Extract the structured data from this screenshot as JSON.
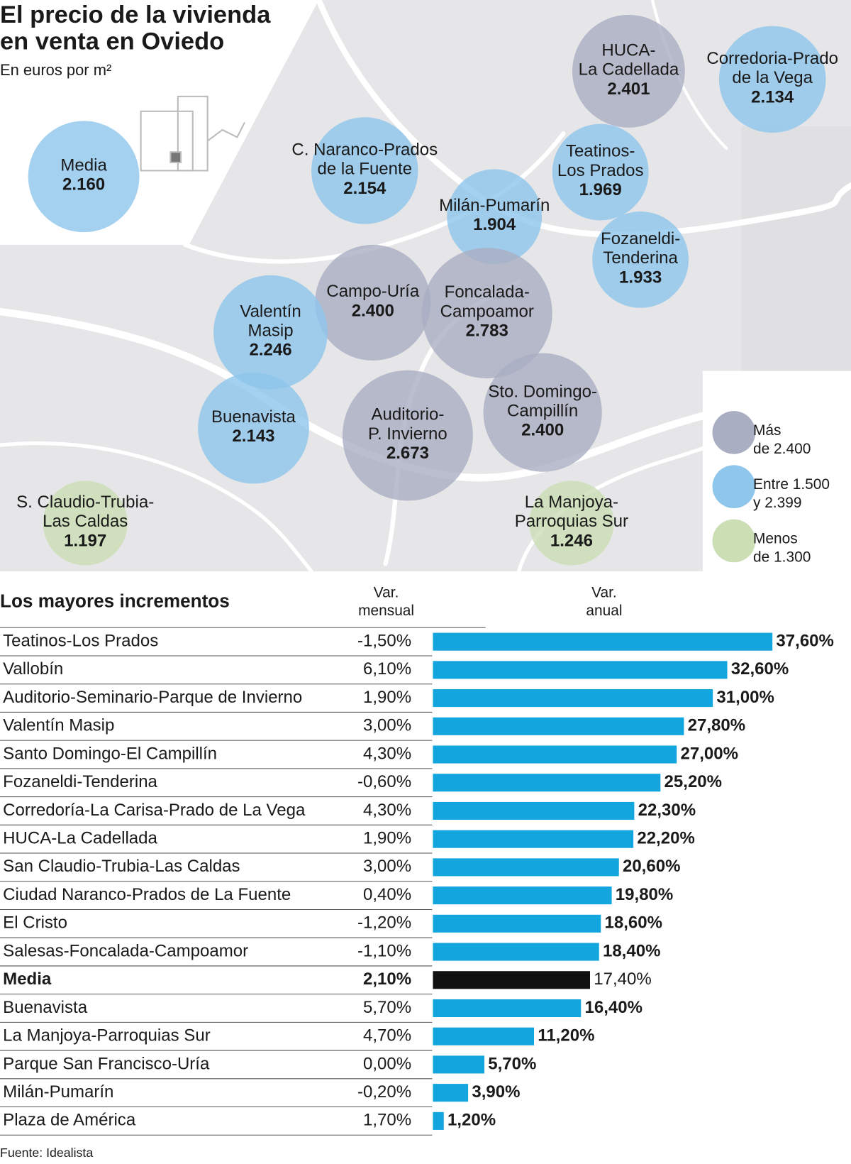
{
  "header": {
    "title": [
      "El precio de la vivienda",
      "en venta en Oviedo"
    ],
    "subtitle": "En euros por m²"
  },
  "map": {
    "legend": [
      {
        "label_lines": [
          "Más",
          "de 2.400"
        ],
        "color": "#a9aec2"
      },
      {
        "label_lines": [
          "Entre 1.500",
          "y 2.399"
        ],
        "color": "#8ec6ec"
      },
      {
        "label_lines": [
          "Menos",
          "de 1.300"
        ],
        "color": "#cbdeb4"
      }
    ],
    "bubbles": [
      {
        "label_lines": [
          "Media"
        ],
        "value": "2.160",
        "group": 1
      },
      {
        "label_lines": [
          "HUCA-",
          "La Cadellada"
        ],
        "value": "2.401",
        "group": 0
      },
      {
        "label_lines": [
          "Corredoria-Prado",
          "de la Vega"
        ],
        "value": "2.134",
        "group": 1
      },
      {
        "label_lines": [
          "C. Naranco-Prados",
          "de la Fuente"
        ],
        "value": "2.154",
        "group": 1
      },
      {
        "label_lines": [
          "Teatinos-",
          "Los Prados"
        ],
        "value": "1.969",
        "group": 1
      },
      {
        "label_lines": [
          "Milán-Pumarín"
        ],
        "value": "1.904",
        "group": 1
      },
      {
        "label_lines": [
          "Fozaneldi-",
          "Tenderina"
        ],
        "value": "1.933",
        "group": 1
      },
      {
        "label_lines": [
          "Campo-Uría"
        ],
        "value": "2.400",
        "group": 0
      },
      {
        "label_lines": [
          "Foncalada-",
          "Campoamor"
        ],
        "value": "2.783",
        "group": 0
      },
      {
        "label_lines": [
          "Valentín",
          "Masip"
        ],
        "value": "2.246",
        "group": 1
      },
      {
        "label_lines": [
          "Buenavista"
        ],
        "value": "2.143",
        "group": 1
      },
      {
        "label_lines": [
          "Auditorio-",
          "P. Invierno"
        ],
        "value": "2.673",
        "group": 0
      },
      {
        "label_lines": [
          "Sto. Domingo-",
          "Campillín"
        ],
        "value": "2.400",
        "group": 0
      },
      {
        "label_lines": [
          "S. Claudio-Trubia-",
          "Las Caldas"
        ],
        "value": "1.197",
        "group": 2
      },
      {
        "label_lines": [
          "La Manjoya-",
          "Parroquias Sur"
        ],
        "value": "1.246",
        "group": 2
      }
    ]
  },
  "chart_data": {
    "type": "bar",
    "title": "Los mayores incrementos",
    "column_headers": [
      [
        "Var.",
        "mensual"
      ],
      [
        "Var.",
        "anual"
      ]
    ],
    "categories": [
      "Teatinos-Los Prados",
      "Vallobín",
      "Auditorio-Seminario-Parque de Invierno",
      "Valentín Masip",
      "Santo Domingo-El Campillín",
      "Fozaneldi-Tenderina",
      "Corredoría-La Carisa-Prado de La Vega",
      "HUCA-La Cadellada",
      "San Claudio-Trubia-Las Caldas",
      "Ciudad Naranco-Prados de La Fuente",
      "El Cristo",
      "Salesas-Foncalada-Campoamor",
      "Media",
      "Buenavista",
      "La Manjoya-Parroquias Sur",
      "Parque San Francisco-Uría",
      "Milán-Pumarín",
      "Plaza de América"
    ],
    "monthly": [
      "-1,50%",
      "6,10%",
      "1,90%",
      "3,00%",
      "4,30%",
      "-0,60%",
      "4,30%",
      "1,90%",
      "3,00%",
      "0,40%",
      "-1,20%",
      "-1,10%",
      "2,10%",
      "5,70%",
      "4,70%",
      "0,00%",
      "-0,20%",
      "1,70%"
    ],
    "values": [
      37.6,
      32.6,
      31.0,
      27.8,
      27.0,
      25.2,
      22.3,
      22.2,
      20.6,
      19.8,
      18.6,
      18.4,
      17.4,
      16.4,
      11.2,
      5.7,
      3.9,
      1.2
    ],
    "value_labels": [
      "37,60%",
      "32,60%",
      "31,00%",
      "27,80%",
      "27,00%",
      "25,20%",
      "22,30%",
      "22,20%",
      "20,60%",
      "19,80%",
      "18,60%",
      "18,40%",
      "17,40%",
      "16,40%",
      "11,20%",
      "5,70%",
      "3,90%",
      "1,20%"
    ],
    "colors": [
      "#12a5de",
      "#12a5de",
      "#12a5de",
      "#12a5de",
      "#12a5de",
      "#12a5de",
      "#12a5de",
      "#12a5de",
      "#12a5de",
      "#12a5de",
      "#12a5de",
      "#12a5de",
      "#111111",
      "#12a5de",
      "#12a5de",
      "#12a5de",
      "#12a5de",
      "#12a5de"
    ],
    "emphasis_index": 12
  },
  "footer": {
    "source": "Fuente: Idealista"
  }
}
